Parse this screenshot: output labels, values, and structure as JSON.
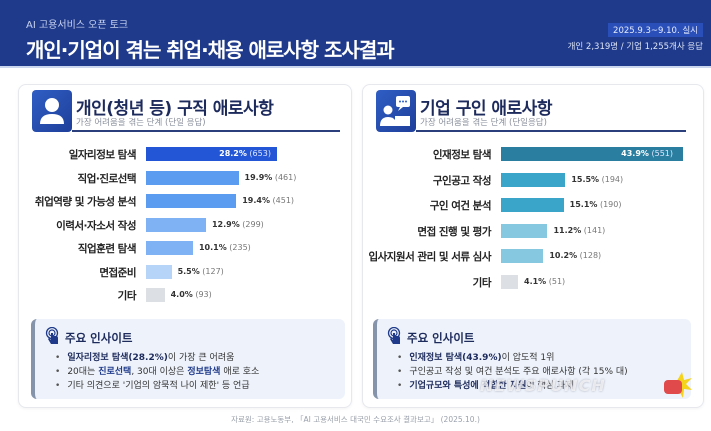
{
  "header": {
    "eyebrow": "AI 고용서비스 오픈 토크",
    "title": "개인·기업이 겪는 취업·채용 애로사항 조사결과",
    "date_badge": "2025.9.3~9.10. 실시",
    "respondents": "개인 2,319명 / 기업 1,255개사 응답"
  },
  "left_panel": {
    "icon": "person-icon",
    "title": "개인(청년 등) 구직 애로사항",
    "subtitle": "가장 어려움을 겪는 단계 (단일 응답)",
    "insight": {
      "icon": "touch-icon",
      "title": "주요 인사이트",
      "items": [
        {
          "bold": "일자리정보 탐색(28.2%)",
          "rest": "이 가장 큰 어려움"
        },
        {
          "pre": "20대는 ",
          "hl1": "진로선택",
          "mid": ", 30대 이상은 ",
          "hl2": "정보탐색",
          "post": " 애로 호소"
        },
        {
          "text": "기타 의견으로 '기업의 암묵적 나이 제한' 등 언급"
        }
      ]
    }
  },
  "right_panel": {
    "icon": "employer-chat-icon",
    "title": "기업 구인 애로사항",
    "subtitle": "가장 어려움을 겪는 단계 (단일응답)",
    "insight": {
      "icon": "touch-icon",
      "title": "주요 인사이트",
      "items": [
        {
          "bold": "인재정보 탐색(43.9%)",
          "rest": "이 압도적 1위"
        },
        {
          "text": "구인공고 작성 및 여건 분석도 주요 애로사항 (각 15% 대)"
        },
        {
          "bold": "기업규모와 특성에 적합한 지원",
          "rest": "이 핵심 과제"
        }
      ]
    }
  },
  "source": "자료원: 고용노동부, 「AI 고용서비스 대국민 수요조사 결과보고」 (2025.10.)",
  "watermark": "NEWSPUNCH",
  "chart_data": [
    {
      "type": "bar",
      "orientation": "horizontal",
      "title": "개인(청년 등) 구직 애로사항",
      "subtitle": "가장 어려움을 겪는 단계 (단일 응답)",
      "categories": [
        "일자리정보 탐색",
        "직업·진로선택",
        "취업역량 및 가능성 분석",
        "이력서·자소서 작성",
        "직업훈련 탐색",
        "면접준비",
        "기타"
      ],
      "values": [
        28.2,
        19.9,
        19.4,
        12.9,
        10.1,
        5.5,
        4.0
      ],
      "counts": [
        653,
        461,
        451,
        299,
        235,
        127,
        93
      ],
      "value_labels": [
        "28.2%",
        "19.9%",
        "19.4%",
        "12.9%",
        "10.1%",
        "5.5%",
        "4.0%"
      ],
      "count_labels": [
        "(653)",
        "(461)",
        "(451)",
        "(299)",
        "(235)",
        "(127)",
        "(93)"
      ],
      "colors": [
        "#2356d6",
        "#5b9bf0",
        "#5b9bf0",
        "#7fb2f4",
        "#7fb2f4",
        "#b6d4f8",
        "#dcdfe4"
      ],
      "unit": "%",
      "grid": false
    },
    {
      "type": "bar",
      "orientation": "horizontal",
      "title": "기업 구인 애로사항",
      "subtitle": "가장 어려움을 겪는 단계 (단일응답)",
      "categories": [
        "인재정보 탐색",
        "구인공고 작성",
        "구인 여건 분석",
        "면접 진행 및 평가",
        "입사지원서 관리 및 서류 심사",
        "기타"
      ],
      "values": [
        43.9,
        15.5,
        15.1,
        11.2,
        10.2,
        4.1
      ],
      "counts": [
        551,
        194,
        190,
        141,
        128,
        51
      ],
      "value_labels": [
        "43.9%",
        "15.5%",
        "15.1%",
        "11.2%",
        "10.2%",
        "4.1%"
      ],
      "count_labels": [
        "(551)",
        "(194)",
        "(190)",
        "(141)",
        "(128)",
        "(51)"
      ],
      "colors": [
        "#2a7fa0",
        "#3aa5c9",
        "#3aa5c9",
        "#86c8e0",
        "#86c8e0",
        "#dcdfe4"
      ],
      "unit": "%",
      "grid": false
    }
  ]
}
